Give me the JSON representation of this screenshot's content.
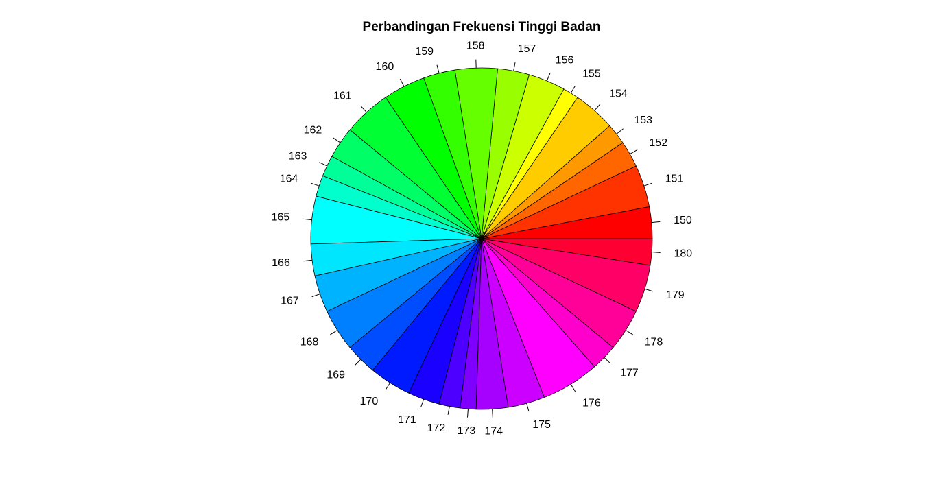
{
  "chart_data": {
    "type": "pie",
    "title": "Perbandingan Frekuensi Tinggi Badan",
    "direction": "counterclockwise",
    "start": "0 degrees (pointing right)",
    "slices": [
      {
        "label": "150",
        "value": 6,
        "color": "#FF0000"
      },
      {
        "label": "151",
        "value": 8,
        "color": "#FF3300"
      },
      {
        "label": "152",
        "value": 5,
        "color": "#FF6600"
      },
      {
        "label": "153",
        "value": 4,
        "color": "#FF9900"
      },
      {
        "label": "154",
        "value": 8,
        "color": "#FFCC00"
      },
      {
        "label": "155",
        "value": 3,
        "color": "#FFFF00"
      },
      {
        "label": "156",
        "value": 7,
        "color": "#CCFF00"
      },
      {
        "label": "157",
        "value": 6,
        "color": "#99FF00"
      },
      {
        "label": "158",
        "value": 8,
        "color": "#66FF00"
      },
      {
        "label": "159",
        "value": 6,
        "color": "#33FF00"
      },
      {
        "label": "160",
        "value": 8,
        "color": "#00FF00"
      },
      {
        "label": "161",
        "value": 9,
        "color": "#00FF33"
      },
      {
        "label": "162",
        "value": 6,
        "color": "#00FF66"
      },
      {
        "label": "163",
        "value": 4,
        "color": "#00FF99"
      },
      {
        "label": "164",
        "value": 4,
        "color": "#00FFCC"
      },
      {
        "label": "165",
        "value": 9,
        "color": "#00FFFF"
      },
      {
        "label": "166",
        "value": 6,
        "color": "#00E6FF"
      },
      {
        "label": "167",
        "value": 7,
        "color": "#00B3FF"
      },
      {
        "label": "168",
        "value": 8,
        "color": "#0080FF"
      },
      {
        "label": "169",
        "value": 6,
        "color": "#004DFF"
      },
      {
        "label": "170",
        "value": 8,
        "color": "#001AFF"
      },
      {
        "label": "171",
        "value": 6,
        "color": "#1A00FF"
      },
      {
        "label": "172",
        "value": 4,
        "color": "#4D00FF"
      },
      {
        "label": "173",
        "value": 3,
        "color": "#8000FF"
      },
      {
        "label": "174",
        "value": 6,
        "color": "#A600FF"
      },
      {
        "label": "175",
        "value": 7,
        "color": "#CC00FF"
      },
      {
        "label": "176",
        "value": 11,
        "color": "#FF00FF"
      },
      {
        "label": "177",
        "value": 5,
        "color": "#FF00CC"
      },
      {
        "label": "178",
        "value": 8,
        "color": "#FF0099"
      },
      {
        "label": "179",
        "value": 9,
        "color": "#FF0066"
      },
      {
        "label": "180",
        "value": 5,
        "color": "#FF0033"
      }
    ]
  }
}
